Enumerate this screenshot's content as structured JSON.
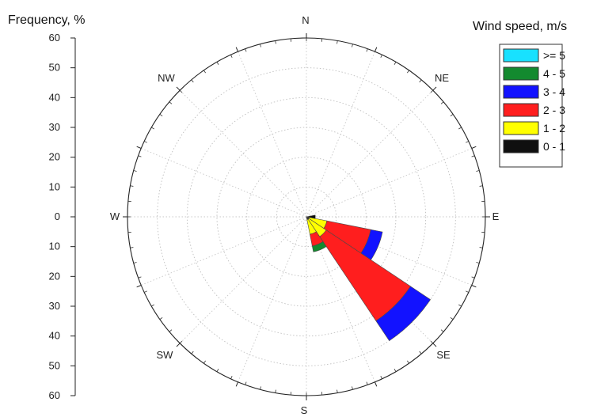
{
  "chart_data": {
    "type": "polar-stacked-bar",
    "subtype": "wind-rose",
    "axis_title": "Frequency, %",
    "legend_title": "Wind speed, m/s",
    "directions": [
      "N",
      "NE",
      "E",
      "SE",
      "S",
      "SW",
      "W",
      "NW"
    ],
    "radial_ticks": [
      "60",
      "50",
      "40",
      "30",
      "20",
      "10",
      "0",
      "10",
      "20",
      "30",
      "40",
      "50",
      "60"
    ],
    "rmax": 60,
    "grid": true,
    "legend_position": "top-right",
    "speed_bins": [
      {
        "label": ">= 5",
        "color": "#18e1ff"
      },
      {
        "label": "4 - 5",
        "color": "#138a2f"
      },
      {
        "label": "3 - 4",
        "color": "#1212ff"
      },
      {
        "label": "2 - 3",
        "color": "#ff1e1e"
      },
      {
        "label": "1 - 2",
        "color": "#ffff00"
      },
      {
        "label": "0 - 1",
        "color": "#0f0f0f"
      }
    ],
    "sectors": [
      {
        "angle_deg": 112.5,
        "segments": [
          {
            "bin": "0 - 1",
            "from": 0,
            "to": 1
          },
          {
            "bin": "1 - 2",
            "from": 1,
            "to": 7
          },
          {
            "bin": "2 - 3",
            "from": 7,
            "to": 22
          },
          {
            "bin": "3 - 4",
            "from": 22,
            "to": 26
          }
        ]
      },
      {
        "angle_deg": 135,
        "segments": [
          {
            "bin": "0 - 1",
            "from": 0,
            "to": 1
          },
          {
            "bin": "1 - 2",
            "from": 1,
            "to": 8
          },
          {
            "bin": "2 - 3",
            "from": 8,
            "to": 42
          },
          {
            "bin": "3 - 4",
            "from": 42,
            "to": 50
          }
        ]
      },
      {
        "angle_deg": 157.5,
        "segments": [
          {
            "bin": "0 - 1",
            "from": 0,
            "to": 1
          },
          {
            "bin": "1 - 2",
            "from": 1,
            "to": 6
          },
          {
            "bin": "2 - 3",
            "from": 6,
            "to": 10
          },
          {
            "bin": "4 - 5",
            "from": 10,
            "to": 12
          }
        ]
      },
      {
        "angle_deg": 90,
        "segments": [
          {
            "bin": "0 - 1",
            "from": 0,
            "to": 3
          }
        ]
      }
    ]
  }
}
